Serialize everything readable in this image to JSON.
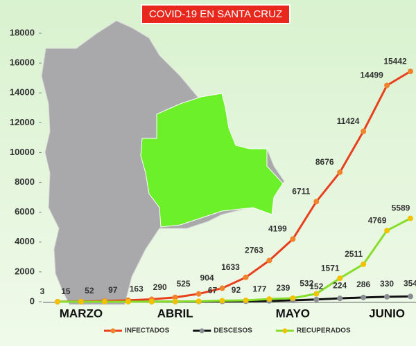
{
  "chart_data": {
    "type": "line",
    "title": "COVID-19  EN  SANTA CRUZ",
    "categories": [
      null,
      "MARZO",
      null,
      null,
      null,
      "ABRIL",
      null,
      null,
      null,
      null,
      "MAYO",
      null,
      null,
      null,
      "JUNIO",
      null
    ],
    "ylim": [
      0,
      18000
    ],
    "yticks": [
      0,
      2000,
      4000,
      6000,
      8000,
      10000,
      12000,
      14000,
      16000,
      18000
    ],
    "legend": "bottom",
    "series": [
      {
        "name": "INFECTADOS",
        "color": "#e8401c",
        "marker_color": "#f0842e",
        "values": [
          3,
          15,
          52,
          97,
          163,
          290,
          525,
          904,
          1633,
          2763,
          4199,
          6711,
          8676,
          11424,
          14499,
          15442
        ],
        "value_labels": [
          "3",
          "15",
          "52",
          "97",
          "163",
          "290",
          "525",
          "904",
          "1633",
          "2763",
          "4199",
          "6711",
          "8676",
          "11424",
          "14499",
          "15442"
        ]
      },
      {
        "name": "DESCESOS",
        "color": "#111111",
        "marker_color": "#8a8f94",
        "values": [
          0,
          0,
          1,
          2,
          4,
          8,
          14,
          22,
          35,
          55,
          90,
          152,
          224,
          286,
          330,
          354
        ],
        "value_labels": [
          null,
          null,
          null,
          null,
          null,
          null,
          null,
          null,
          null,
          null,
          null,
          "152",
          "224",
          "286",
          "330",
          "354"
        ]
      },
      {
        "name": "RECUPERADOS",
        "color": "#86dd2a",
        "marker_color": "#f2c200",
        "values": [
          0,
          0,
          0,
          1,
          3,
          10,
          30,
          67,
          92,
          177,
          239,
          532,
          1571,
          2511,
          4769,
          5589
        ],
        "value_labels": [
          null,
          null,
          null,
          null,
          null,
          null,
          null,
          "67",
          "92",
          "177",
          "239",
          "532",
          "1571",
          "2511",
          "4769",
          "5589"
        ]
      }
    ]
  }
}
